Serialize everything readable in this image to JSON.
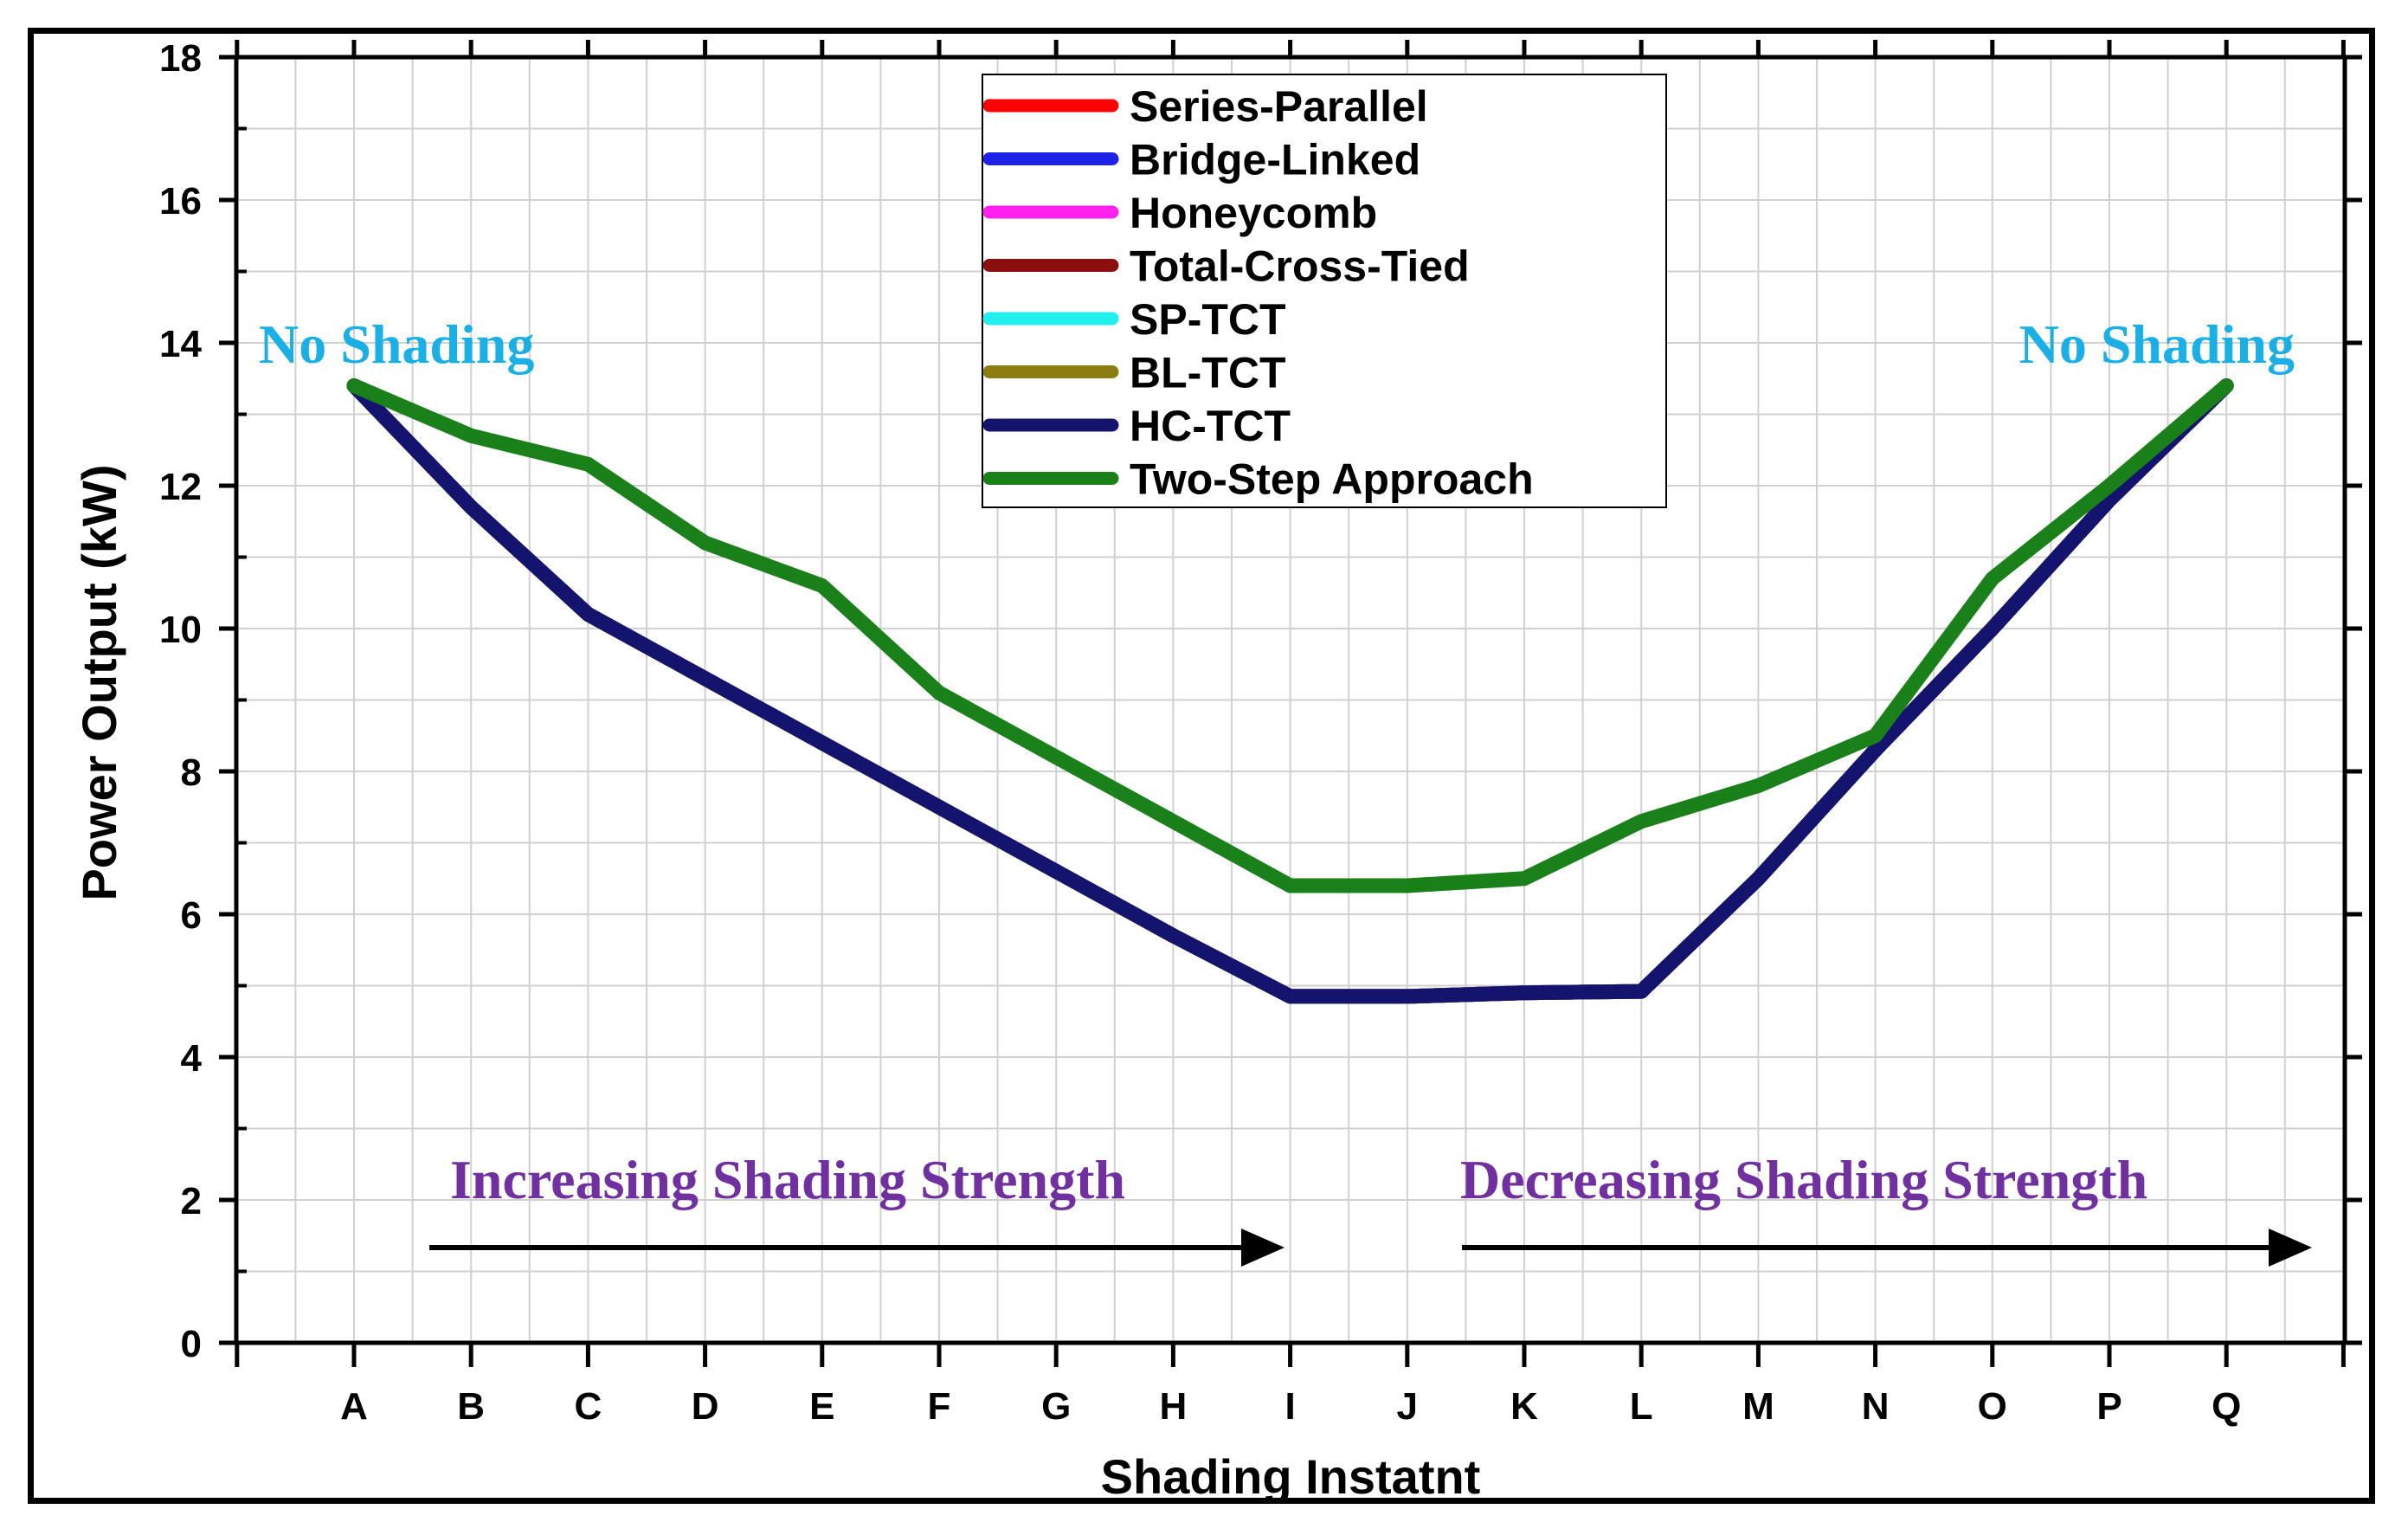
{
  "chart_data": {
    "type": "line",
    "title": "",
    "xlabel": "Shading Instatnt",
    "ylabel": "Power Output (kW)",
    "ylim": [
      0,
      18
    ],
    "yticks": [
      0,
      2,
      4,
      6,
      8,
      10,
      12,
      14,
      16,
      18
    ],
    "grid": true,
    "legend_position": "top-center",
    "categories": [
      "A",
      "B",
      "C",
      "D",
      "E",
      "F",
      "G",
      "H",
      "I",
      "J",
      "K",
      "L",
      "M",
      "N",
      "O",
      "P",
      "Q"
    ],
    "series": [
      {
        "name": "Series-Parallel",
        "color": "#ff0000",
        "values": [
          13.4,
          11.7,
          10.2,
          9.3,
          8.4,
          7.5,
          6.6,
          5.7,
          4.85,
          4.85,
          4.9,
          4.92,
          6.5,
          8.3,
          10.0,
          11.8,
          13.4
        ]
      },
      {
        "name": "Bridge-Linked",
        "color": "#1e22e6",
        "values": [
          13.4,
          11.7,
          10.2,
          9.3,
          8.4,
          7.5,
          6.6,
          5.7,
          4.85,
          4.85,
          4.9,
          4.92,
          6.5,
          8.3,
          10.0,
          11.8,
          13.4
        ]
      },
      {
        "name": "Honeycomb",
        "color": "#ff22ee",
        "values": [
          13.4,
          11.7,
          10.2,
          9.3,
          8.4,
          7.5,
          6.6,
          5.7,
          4.85,
          4.85,
          4.9,
          4.92,
          6.5,
          8.3,
          10.0,
          11.8,
          13.4
        ]
      },
      {
        "name": "Total-Cross-Tied",
        "color": "#8b0f0f",
        "values": [
          13.4,
          11.7,
          10.2,
          9.3,
          8.4,
          7.5,
          6.6,
          5.7,
          4.85,
          4.85,
          4.9,
          4.92,
          6.5,
          8.3,
          10.0,
          11.8,
          13.4
        ]
      },
      {
        "name": "SP-TCT",
        "color": "#22eeee",
        "values": [
          13.4,
          11.7,
          10.2,
          9.3,
          8.4,
          7.5,
          6.6,
          5.7,
          4.85,
          4.85,
          4.9,
          4.92,
          6.5,
          8.3,
          10.0,
          11.8,
          13.4
        ]
      },
      {
        "name": "BL-TCT",
        "color": "#8b7d12",
        "values": [
          13.4,
          11.7,
          10.2,
          9.3,
          8.4,
          7.5,
          6.6,
          5.7,
          4.85,
          4.85,
          4.9,
          4.92,
          6.5,
          8.3,
          10.0,
          11.8,
          13.4
        ]
      },
      {
        "name": "HC-TCT",
        "color": "#14146e",
        "values": [
          13.4,
          11.7,
          10.2,
          9.3,
          8.4,
          7.5,
          6.6,
          5.7,
          4.85,
          4.85,
          4.9,
          4.92,
          6.5,
          8.3,
          10.0,
          11.8,
          13.4
        ]
      },
      {
        "name": "Two-Step Approach",
        "color": "#1a801a",
        "values": [
          13.4,
          12.7,
          12.3,
          11.2,
          10.6,
          9.1,
          8.2,
          7.3,
          6.4,
          6.4,
          6.5,
          7.3,
          7.8,
          8.5,
          10.7,
          12.0,
          13.4
        ]
      }
    ],
    "annotations": [
      {
        "id": "no_shading_left",
        "text": "No Shading",
        "color": "#1ab0e6"
      },
      {
        "id": "no_shading_right",
        "text": "No Shading",
        "color": "#1ab0e6"
      },
      {
        "id": "increasing",
        "text": "Increasing Shading Strength",
        "color": "#7030a0"
      },
      {
        "id": "decreasing",
        "text": "Decreasing Shading Strength",
        "color": "#7030a0"
      }
    ]
  }
}
